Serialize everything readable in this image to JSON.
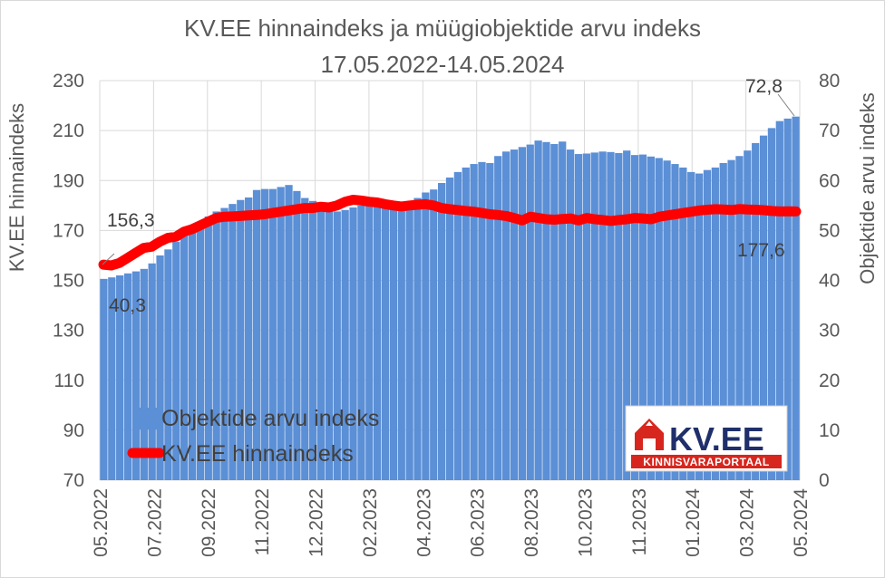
{
  "chart_data": {
    "type": "bar+line",
    "title": "KV.EE hinnaindeks ja müügiobjektide arvu indeks",
    "subtitle": "17.05.2022-14.05.2024",
    "ylabel_left": "KV.EE hinnaindeks",
    "ylabel_right": "Objektide arvu indeks",
    "ylim_left": [
      70,
      230
    ],
    "ylim_right": [
      0,
      80
    ],
    "yticks_left": [
      "70",
      "90",
      "110",
      "130",
      "150",
      "170",
      "190",
      "210",
      "230"
    ],
    "yticks_right": [
      "0",
      "10",
      "20",
      "30",
      "40",
      "50",
      "60",
      "70",
      "80"
    ],
    "xtick_labels": [
      "05.2022",
      "07.2022",
      "09.2022",
      "11.2022",
      "12.2022",
      "02.2023",
      "04.2023",
      "06.2023",
      "08.2023",
      "10.2023",
      "11.2023",
      "01.2024",
      "03.2024",
      "05.2024"
    ],
    "grid": true,
    "legend_placement": "bottom-left",
    "series": [
      {
        "name": "Objektide arvu indeks",
        "kind": "bar",
        "axis": "right",
        "color": "#5b8fd6",
        "values": [
          40.3,
          40.6,
          41.0,
          41.4,
          41.8,
          42.3,
          43.4,
          45.0,
          46.2,
          47.7,
          49.1,
          50.2,
          51.6,
          52.8,
          53.8,
          54.5,
          55.3,
          56.1,
          56.6,
          58.1,
          58.3,
          58.3,
          58.7,
          59.1,
          57.9,
          56.5,
          55.9,
          55.1,
          54.0,
          53.8,
          54.1,
          54.6,
          55.0,
          55.5,
          55.7,
          55.2,
          54.6,
          55.1,
          55.7,
          56.5,
          57.6,
          58.2,
          59.5,
          60.6,
          61.7,
          62.6,
          63.3,
          63.7,
          63.5,
          64.9,
          65.8,
          66.2,
          66.7,
          67.2,
          68.0,
          67.7,
          67.3,
          67.8,
          66.2,
          65.3,
          65.4,
          65.6,
          65.8,
          65.7,
          65.5,
          66.0,
          65.1,
          65.2,
          64.8,
          64.5,
          64.0,
          63.3,
          62.6,
          61.7,
          61.4,
          62.1,
          62.6,
          63.5,
          64.1,
          64.9,
          66.0,
          67.5,
          69.0,
          70.5,
          71.9,
          72.4,
          72.8
        ]
      },
      {
        "name": "KV.EE hinnaindeks",
        "kind": "line",
        "axis": "left",
        "color": "#ff0000",
        "values": [
          156.3,
          156.0,
          157.0,
          159.0,
          161.0,
          163.0,
          163.5,
          165.5,
          167.0,
          167.5,
          169.5,
          170.5,
          172.0,
          173.5,
          175.0,
          175.5,
          175.6,
          175.8,
          176.0,
          176.2,
          176.5,
          177.0,
          177.5,
          178.0,
          178.5,
          179.0,
          179.0,
          179.5,
          179.2,
          180.0,
          181.5,
          182.3,
          182.0,
          181.5,
          181.2,
          180.5,
          180.0,
          179.6,
          180.0,
          180.3,
          180.5,
          180.0,
          179.0,
          178.5,
          178.2,
          177.8,
          177.5,
          177.0,
          176.5,
          176.2,
          175.8,
          175.0,
          174.0,
          175.5,
          175.0,
          174.5,
          174.3,
          174.6,
          174.8,
          174.0,
          175.0,
          174.5,
          174.2,
          173.8,
          174.2,
          174.5,
          175.0,
          174.8,
          174.5,
          175.5,
          176.0,
          176.5,
          177.0,
          177.5,
          178.0,
          178.3,
          178.5,
          178.4,
          178.2,
          178.6,
          178.4,
          178.3,
          178.1,
          177.8,
          177.6,
          177.7,
          177.6
        ]
      }
    ],
    "annotations": {
      "left_start": "156,3",
      "right_start": "40,3",
      "right_end": "72,8",
      "left_end": "177,6"
    },
    "logo": {
      "text": "KV.EE",
      "subtext": "KINNISVARAPORTAAL",
      "color": "#d7261e"
    }
  }
}
